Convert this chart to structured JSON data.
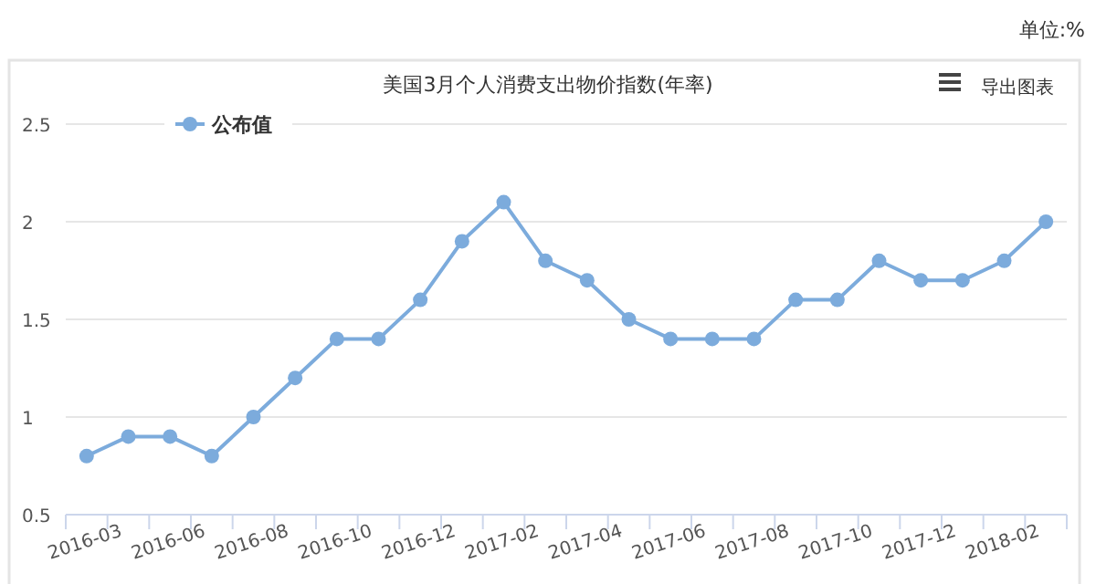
{
  "chart_data": {
    "type": "line",
    "title": "美国3月个人消费支出物价指数(年率)",
    "annotations": [
      "单位:%",
      "导出图表"
    ],
    "categories": [
      "2016-03",
      null,
      "2016-06",
      null,
      "2016-08",
      null,
      "2016-10",
      null,
      "2016-12",
      null,
      "2017-02",
      null,
      "2017-04",
      null,
      "2017-06",
      null,
      "2017-08",
      null,
      "2017-10",
      null,
      "2017-12",
      null,
      "2018-02",
      null
    ],
    "series": [
      {
        "name": "公布值",
        "color": "#7cabdc",
        "values": [
          0.8,
          0.9,
          0.9,
          0.8,
          1.0,
          1.2,
          1.4,
          1.4,
          1.6,
          1.9,
          2.1,
          1.8,
          1.7,
          1.5,
          1.4,
          1.4,
          1.4,
          1.6,
          1.6,
          1.8,
          1.7,
          1.7,
          1.8,
          2.0
        ]
      }
    ],
    "ylim": [
      0.5,
      2.5
    ],
    "yticks": [
      0.5,
      1,
      1.5,
      2,
      2.5
    ],
    "grid": "y",
    "legend": "top left",
    "marker": "circle",
    "line_style": "solid"
  }
}
